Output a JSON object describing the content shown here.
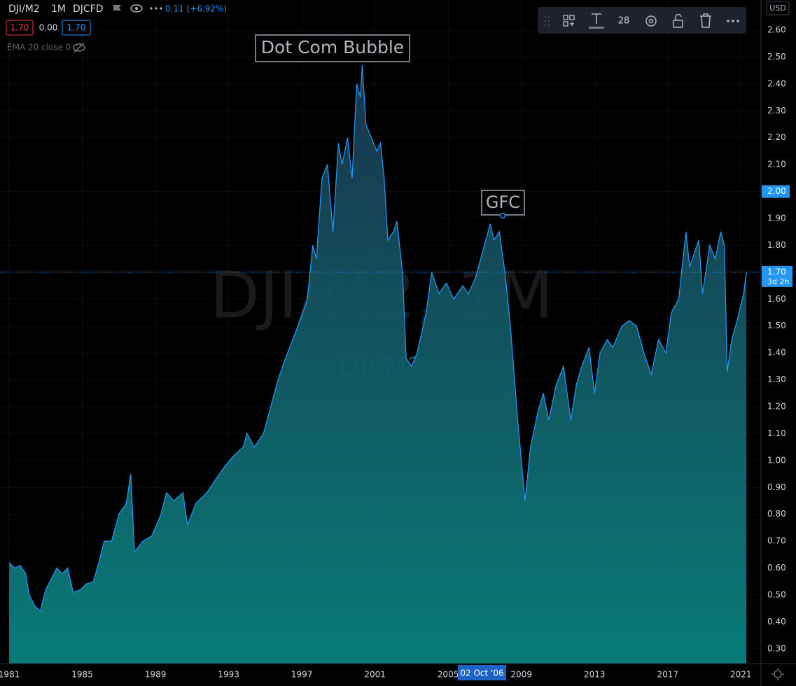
{
  "ui": {
    "symbol": "DJI/M2",
    "interval": "1M",
    "source": "DJCFD",
    "change": "0.11 (+6.92%)",
    "ohlc_boxes": [
      "1.70",
      "0.00",
      "1.70"
    ],
    "indicator": "EMA 20 close 0",
    "toolbar_font_size": "28",
    "currency": "USD",
    "crosshair_date": "02 Oct '06",
    "watermark": "DJI/M2, 1M",
    "watermark_sub": "DJI/M2"
  },
  "chart_data": {
    "type": "area",
    "annotations": [
      "Dot Com Bubble",
      "GFC"
    ],
    "x": [
      1981.0,
      1981.3,
      1981.6,
      1981.9,
      1982.1,
      1982.4,
      1982.7,
      1983.0,
      1983.3,
      1983.6,
      1983.9,
      1984.2,
      1984.5,
      1984.9,
      1985.2,
      1985.6,
      1985.9,
      1986.2,
      1986.6,
      1987.0,
      1987.4,
      1987.65,
      1987.85,
      1988.3,
      1988.8,
      1989.3,
      1989.6,
      1990.0,
      1990.5,
      1990.75,
      1991.2,
      1991.8,
      1992.3,
      1992.8,
      1993.3,
      1993.8,
      1994.0,
      1994.4,
      1994.9,
      1995.3,
      1995.7,
      1996.0,
      1996.5,
      1996.9,
      1997.3,
      1997.6,
      1997.8,
      1998.1,
      1998.4,
      1998.7,
      1999.0,
      1999.2,
      1999.5,
      1999.75,
      2000.0,
      2000.2,
      2000.3,
      2000.5,
      2000.8,
      2001.1,
      2001.3,
      2001.5,
      2001.7,
      2002.0,
      2002.2,
      2002.5,
      2002.7,
      2003.0,
      2003.3,
      2003.8,
      2004.1,
      2004.5,
      2004.9,
      2005.3,
      2005.8,
      2006.1,
      2006.5,
      2006.9,
      2007.3,
      2007.5,
      2007.8,
      2008.1,
      2008.4,
      2008.8,
      2009.2,
      2009.5,
      2009.9,
      2010.2,
      2010.5,
      2010.9,
      2011.3,
      2011.7,
      2012.0,
      2012.3,
      2012.7,
      2013.0,
      2013.3,
      2013.7,
      2014.0,
      2014.5,
      2014.9,
      2015.3,
      2015.7,
      2016.1,
      2016.5,
      2016.9,
      2017.2,
      2017.6,
      2018.0,
      2018.2,
      2018.7,
      2018.9,
      2019.3,
      2019.6,
      2019.9,
      2020.1,
      2020.25,
      2020.5,
      2020.8,
      2021.0,
      2021.15,
      2021.3
    ],
    "values": [
      0.62,
      0.6,
      0.61,
      0.58,
      0.5,
      0.46,
      0.44,
      0.52,
      0.56,
      0.6,
      0.58,
      0.6,
      0.51,
      0.52,
      0.54,
      0.55,
      0.62,
      0.7,
      0.7,
      0.8,
      0.84,
      0.95,
      0.66,
      0.7,
      0.72,
      0.8,
      0.88,
      0.85,
      0.88,
      0.76,
      0.84,
      0.88,
      0.93,
      0.98,
      1.02,
      1.05,
      1.1,
      1.05,
      1.1,
      1.2,
      1.3,
      1.36,
      1.45,
      1.52,
      1.6,
      1.8,
      1.75,
      2.05,
      2.1,
      1.85,
      2.18,
      2.1,
      2.2,
      2.05,
      2.4,
      2.35,
      2.47,
      2.25,
      2.2,
      2.15,
      2.18,
      2.05,
      1.82,
      1.85,
      1.89,
      1.7,
      1.38,
      1.35,
      1.4,
      1.55,
      1.7,
      1.62,
      1.66,
      1.6,
      1.65,
      1.62,
      1.68,
      1.78,
      1.88,
      1.82,
      1.85,
      1.7,
      1.5,
      1.15,
      0.85,
      1.05,
      1.18,
      1.25,
      1.15,
      1.28,
      1.35,
      1.15,
      1.28,
      1.35,
      1.42,
      1.25,
      1.4,
      1.45,
      1.42,
      1.5,
      1.52,
      1.5,
      1.4,
      1.32,
      1.45,
      1.4,
      1.55,
      1.6,
      1.85,
      1.72,
      1.82,
      1.62,
      1.8,
      1.75,
      1.85,
      1.8,
      1.33,
      1.45,
      1.52,
      1.58,
      1.62,
      1.7
    ],
    "color": "#2196f3",
    "xlim": [
      1980.5,
      2022.1
    ],
    "xticks": [
      1981,
      1985,
      1989,
      1993,
      1997,
      2001,
      2005,
      2009,
      2013,
      2017,
      2021
    ],
    "ylim": [
      0.245,
      2.712
    ],
    "yticks": [
      {
        "value": 0.3,
        "label": "0.30"
      },
      {
        "value": 0.4,
        "label": "0.40"
      },
      {
        "value": 0.5,
        "label": "0.50"
      },
      {
        "value": 0.6,
        "label": "0.60"
      },
      {
        "value": 0.7,
        "label": "0.70"
      },
      {
        "value": 0.8,
        "label": "0.80"
      },
      {
        "value": 0.9,
        "label": "0.90"
      },
      {
        "value": 1.0,
        "label": "1.00"
      },
      {
        "value": 1.1,
        "label": "1.10"
      },
      {
        "value": 1.2,
        "label": "1.20"
      },
      {
        "value": 1.3,
        "label": "1.30"
      },
      {
        "value": 1.4,
        "label": "1.40"
      },
      {
        "value": 1.5,
        "label": "1.50"
      },
      {
        "value": 1.6,
        "label": "1.60"
      },
      {
        "value": 1.7,
        "label": "1.70"
      },
      {
        "value": 1.8,
        "label": "1.80"
      },
      {
        "value": 1.9,
        "label": "1.90"
      },
      {
        "value": 2.0,
        "label": "2.00"
      },
      {
        "value": 2.1,
        "label": "2.10"
      },
      {
        "value": 2.2,
        "label": "2.20"
      },
      {
        "value": 2.3,
        "label": "2.30"
      },
      {
        "value": 2.4,
        "label": "2.40"
      },
      {
        "value": 2.5,
        "label": "2.50"
      },
      {
        "value": 2.6,
        "label": "2.60"
      }
    ],
    "level": {
      "value": 2.0,
      "label": "2.00"
    },
    "current_price": {
      "value": 1.7,
      "label": "1.70",
      "countdown": "3d 2h"
    }
  }
}
